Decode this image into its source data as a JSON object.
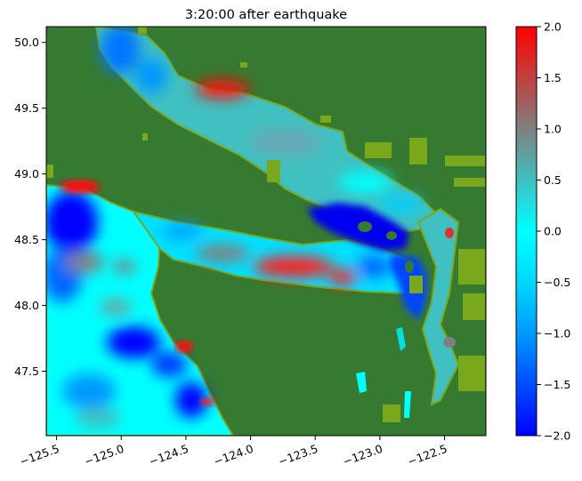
{
  "chart_data": {
    "type": "heatmap",
    "title": "3:20:00 after earthquake",
    "xlabel": "",
    "ylabel": "",
    "xlim": [
      -125.58,
      -122.18
    ],
    "ylim": [
      47.01,
      50.12
    ],
    "x_ticks": [
      -125.5,
      -125.0,
      -124.5,
      -124.0,
      -123.5,
      -123.0,
      -122.5
    ],
    "x_tick_labels": [
      "−125.5",
      "−125.0",
      "−124.5",
      "−124.0",
      "−123.5",
      "−123.0",
      "−122.5"
    ],
    "y_ticks": [
      47.5,
      48.0,
      48.5,
      49.0,
      49.5,
      50.0
    ],
    "y_tick_labels": [
      "47.5",
      "48.0",
      "48.5",
      "49.0",
      "49.5",
      "50.0"
    ],
    "colorbar": {
      "vmin": -2.0,
      "vmax": 2.0,
      "ticks": [
        -2.0,
        -1.5,
        -1.0,
        -0.5,
        0.0,
        0.5,
        1.0,
        1.5,
        2.0
      ],
      "tick_labels": [
        "−2.0",
        "−1.5",
        "−1.0",
        "−0.5",
        "0.0",
        "0.5",
        "1.0",
        "1.5",
        "2.0"
      ],
      "colors": [
        "#0000ff",
        "#00ffff",
        "#808080",
        "#ff0000"
      ]
    },
    "land_color": "#357a30",
    "shore_color": "#7aa81c",
    "grid": false
  }
}
